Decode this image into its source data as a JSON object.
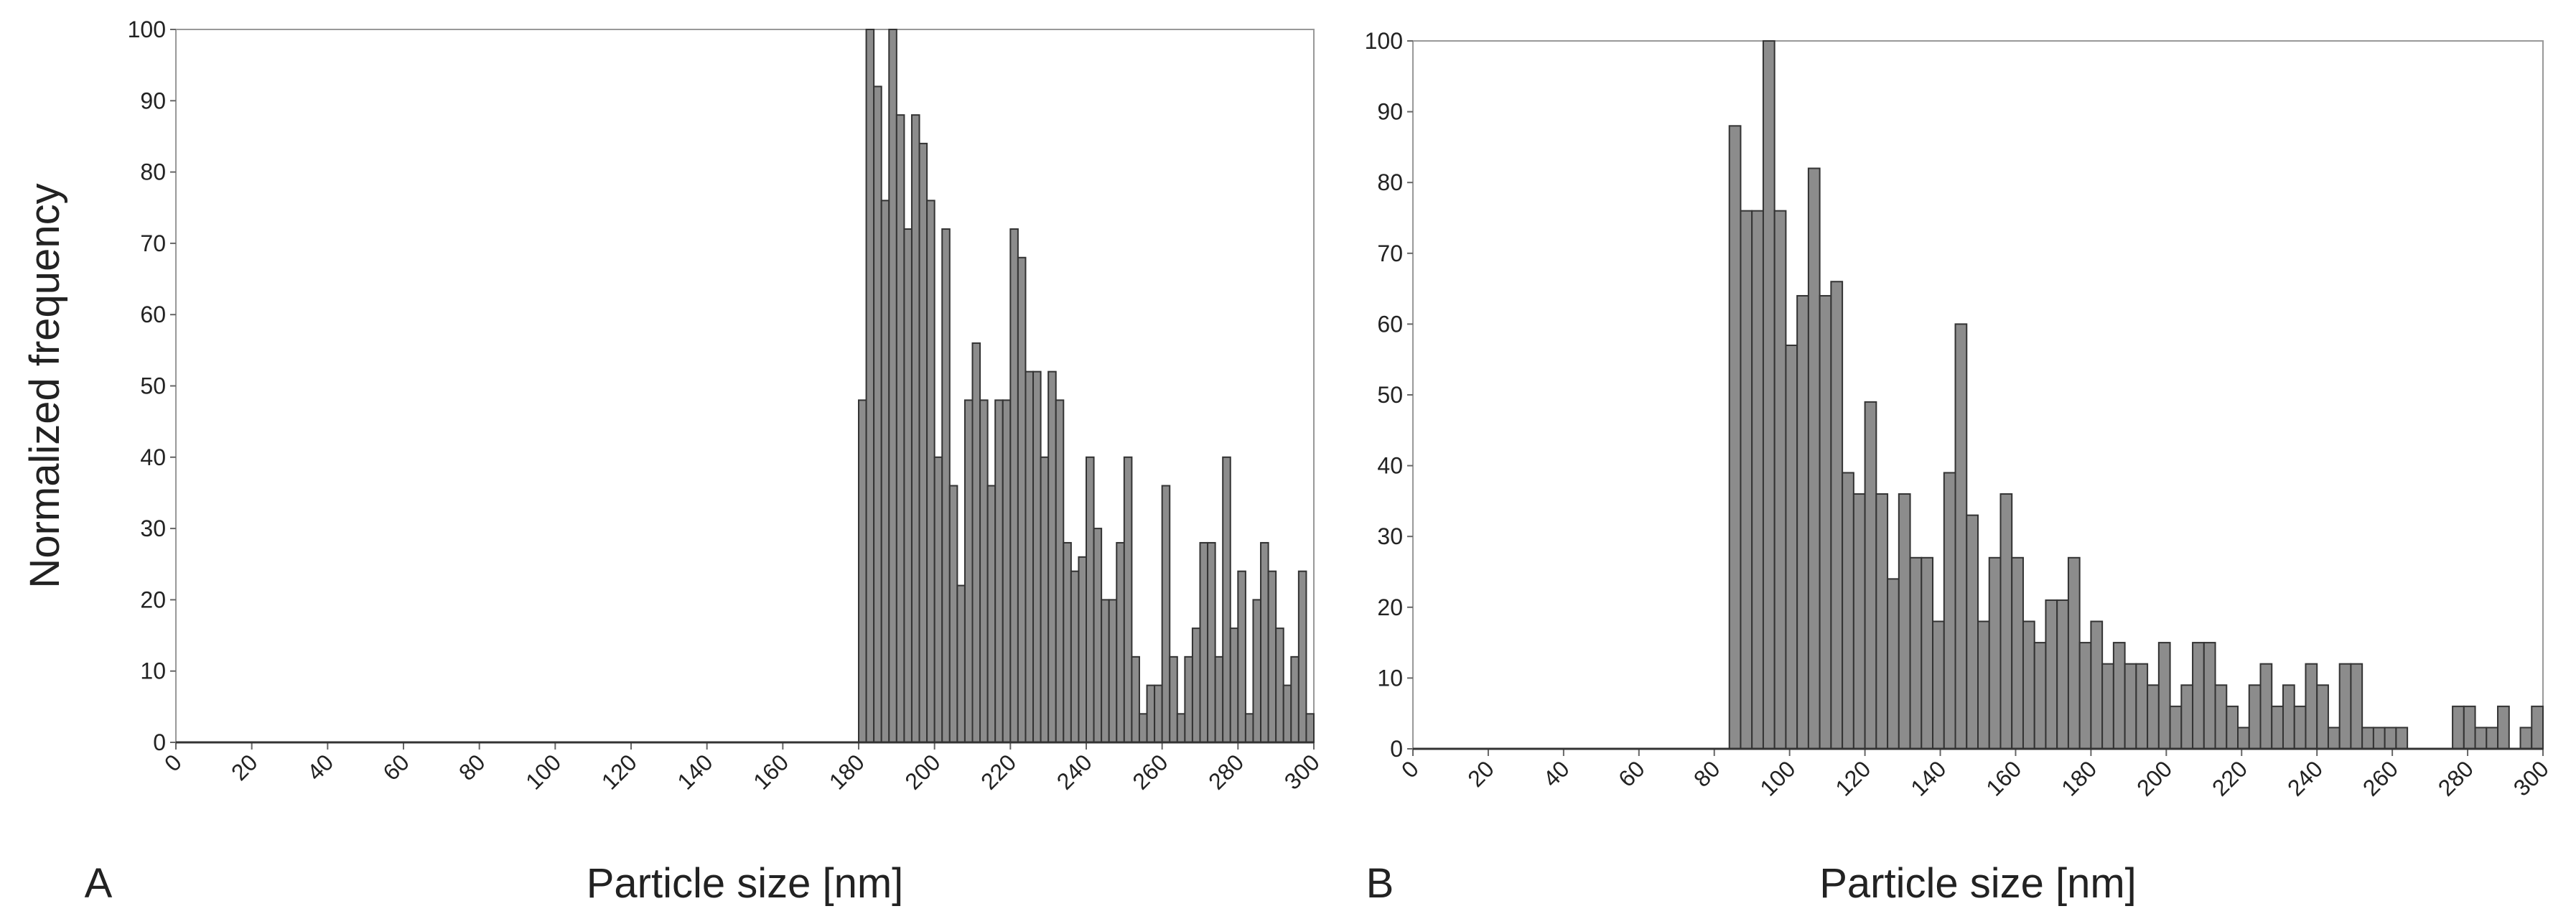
{
  "chart_data": [
    {
      "type": "histogram",
      "label": "A",
      "ylabel": "Normalized frequency",
      "xlabel": "Particle size [nm]",
      "color": "#8c8c8c",
      "xlim": [
        0,
        300
      ],
      "ylim": [
        0,
        100
      ],
      "xticks": [
        0,
        20,
        40,
        60,
        80,
        100,
        120,
        140,
        160,
        180,
        200,
        220,
        240,
        260,
        280,
        300
      ],
      "yticks": [
        0,
        10,
        20,
        30,
        40,
        50,
        60,
        70,
        80,
        90,
        100
      ],
      "bins": [
        180,
        182,
        184,
        186,
        188,
        190,
        192,
        194,
        196,
        198,
        200,
        202,
        204,
        206,
        208,
        210,
        212,
        214,
        216,
        218,
        220,
        222,
        224,
        226,
        228,
        230,
        232,
        234,
        236,
        238,
        240,
        242,
        244,
        246,
        248,
        250,
        252,
        254,
        256,
        258,
        260,
        262,
        264,
        266,
        268,
        270,
        272,
        274,
        276,
        278,
        280,
        282,
        284,
        286,
        288,
        290,
        292,
        294,
        296,
        298,
        300
      ],
      "values": [
        48,
        100,
        92,
        76,
        100,
        88,
        72,
        88,
        84,
        76,
        40,
        72,
        36,
        22,
        48,
        56,
        48,
        36,
        48,
        48,
        72,
        68,
        52,
        52,
        40,
        52,
        48,
        28,
        24,
        26,
        40,
        30,
        20,
        20,
        28,
        40,
        12,
        4,
        8,
        8,
        36,
        12,
        4,
        12,
        16,
        28,
        28,
        12,
        40,
        16,
        24,
        4,
        20,
        28,
        24,
        16,
        8,
        12,
        24,
        4
      ]
    },
    {
      "type": "histogram",
      "label": "B",
      "xlabel": "Particle size [nm]",
      "color": "#8c8c8c",
      "xlim": [
        0,
        300
      ],
      "ylim": [
        0,
        100
      ],
      "xticks": [
        0,
        20,
        40,
        60,
        80,
        100,
        120,
        140,
        160,
        180,
        200,
        220,
        240,
        260,
        280,
        300
      ],
      "yticks": [
        0,
        10,
        20,
        30,
        40,
        50,
        60,
        70,
        80,
        90,
        100
      ],
      "bins": [
        84,
        87,
        90,
        93,
        96,
        99,
        102,
        105,
        108,
        111,
        114,
        117,
        120,
        123,
        126,
        129,
        132,
        135,
        138,
        141,
        144,
        147,
        150,
        153,
        156,
        159,
        162,
        165,
        168,
        171,
        174,
        177,
        180,
        183,
        186,
        189,
        192,
        195,
        198,
        201,
        204,
        207,
        210,
        213,
        216,
        219,
        222,
        225,
        228,
        231,
        234,
        237,
        240,
        243,
        246,
        249,
        252,
        255,
        258,
        261,
        264,
        267,
        270,
        273,
        276,
        279,
        282,
        285,
        288,
        291,
        294,
        297,
        300
      ],
      "values": [
        88,
        76,
        76,
        100,
        76,
        57,
        64,
        82,
        64,
        66,
        39,
        36,
        49,
        36,
        24,
        36,
        27,
        27,
        18,
        39,
        60,
        33,
        18,
        27,
        36,
        27,
        18,
        15,
        21,
        21,
        27,
        15,
        18,
        12,
        15,
        12,
        12,
        9,
        15,
        6,
        9,
        15,
        15,
        9,
        6,
        3,
        9,
        12,
        6,
        9,
        6,
        12,
        9,
        3,
        12,
        12,
        3,
        3,
        3,
        3,
        0,
        0,
        0,
        0,
        6,
        6,
        3,
        3,
        6,
        0,
        3,
        6
      ]
    }
  ]
}
